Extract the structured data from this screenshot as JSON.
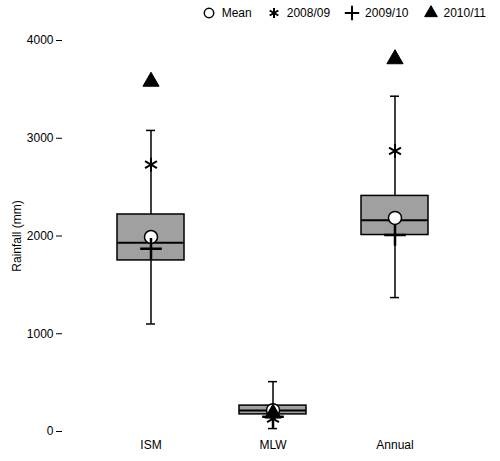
{
  "chart_data": {
    "type": "box",
    "categories": [
      "ISM",
      "MLW",
      "Annual"
    ],
    "q1": [
      1750,
      175,
      2010
    ],
    "median": [
      1930,
      215,
      2160
    ],
    "q3": [
      2220,
      265,
      2410
    ],
    "whisker_low": [
      1100,
      30,
      1370
    ],
    "whisker_high": [
      3080,
      510,
      3430
    ],
    "color": "#a0a0a0",
    "series": [
      {
        "name": "Mean",
        "marker": "circle",
        "values": [
          1990,
          218,
          2185
        ]
      },
      {
        "name": "2008/09",
        "marker": "asterisk",
        "values": [
          2730,
          130,
          2870
        ]
      },
      {
        "name": "2009/10",
        "marker": "plus",
        "values": [
          1870,
          150,
          2010
        ]
      },
      {
        "name": "2010/11",
        "marker": "triangle",
        "values": [
          3580,
          185,
          3810
        ]
      }
    ],
    "ylabel": "Rainfall (mm)",
    "ylim": [
      0,
      4000
    ],
    "yticks": [
      0,
      1000,
      2000,
      3000,
      4000
    ],
    "legend": "upper right"
  }
}
